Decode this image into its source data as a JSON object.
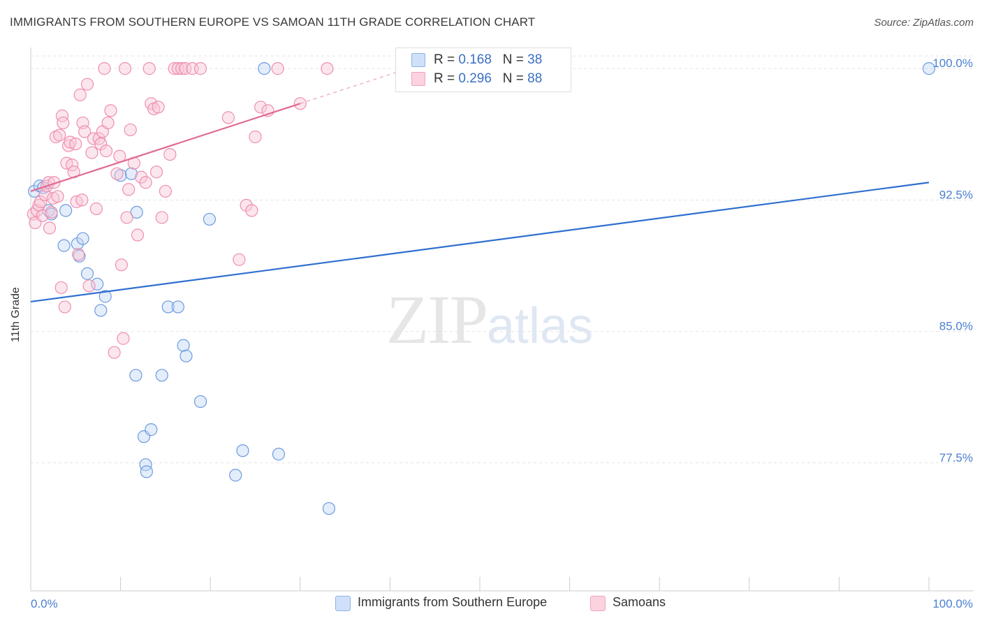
{
  "header": {
    "title": "IMMIGRANTS FROM SOUTHERN EUROPE VS SAMOAN 11TH GRADE CORRELATION CHART",
    "source": "Source: ZipAtlas.com"
  },
  "watermark": {
    "zip": "ZIP",
    "atlas": "atlas"
  },
  "legend": {
    "rows": [
      {
        "r_label": "R =",
        "r_value": "0.168",
        "n_label": "N =",
        "n_value": "38",
        "color": "#a9c6f0"
      },
      {
        "r_label": "R =",
        "r_value": "0.296",
        "n_label": "N =",
        "n_value": "88",
        "color": "#f6b7cb"
      }
    ]
  },
  "bottom_legend": {
    "items": [
      {
        "label": "Immigrants from Southern Europe",
        "color": "#a9c6f0"
      },
      {
        "label": "Samoans",
        "color": "#f6b7cb"
      }
    ]
  },
  "chart_data": {
    "type": "scatter",
    "title": "IMMIGRANTS FROM SOUTHERN EUROPE VS SAMOAN 11TH GRADE CORRELATION CHART",
    "xlabel": "",
    "ylabel": "11th Grade",
    "xlim": [
      0,
      100
    ],
    "ylim": [
      70.2,
      101.2
    ],
    "x_tick_labels": [
      "0.0%",
      "100.0%"
    ],
    "y_ticks": [
      77.5,
      85.0,
      92.5,
      100.0
    ],
    "y_tick_labels": [
      "77.5%",
      "85.0%",
      "92.5%",
      "100.0%"
    ],
    "grid": true,
    "legend_position": "top-center",
    "series": [
      {
        "name": "Immigrants from Southern Europe",
        "color": "#6b9be0",
        "trend": {
          "x0": 0,
          "y0": 86.7,
          "x1": 100,
          "y1": 93.5
        },
        "points": [
          [
            0.4,
            93.0
          ],
          [
            1.0,
            93.3
          ],
          [
            1.4,
            93.2
          ],
          [
            2.0,
            91.9
          ],
          [
            2.3,
            91.7
          ],
          [
            3.7,
            89.9
          ],
          [
            3.9,
            91.9
          ],
          [
            5.2,
            90.0
          ],
          [
            5.4,
            89.3
          ],
          [
            5.8,
            90.3
          ],
          [
            6.3,
            88.3
          ],
          [
            7.4,
            87.7
          ],
          [
            7.8,
            86.2
          ],
          [
            8.3,
            87.0
          ],
          [
            10.0,
            93.9
          ],
          [
            11.2,
            94.0
          ],
          [
            11.7,
            82.5
          ],
          [
            11.8,
            91.8
          ],
          [
            12.6,
            79.0
          ],
          [
            12.8,
            77.4
          ],
          [
            12.9,
            77.0
          ],
          [
            13.4,
            79.4
          ],
          [
            14.6,
            82.5
          ],
          [
            15.3,
            86.4
          ],
          [
            16.4,
            86.4
          ],
          [
            17.0,
            84.2
          ],
          [
            17.3,
            83.6
          ],
          [
            18.9,
            81.0
          ],
          [
            19.9,
            91.4
          ],
          [
            22.8,
            76.8
          ],
          [
            23.6,
            78.2
          ],
          [
            26.0,
            100.0
          ],
          [
            27.6,
            78.0
          ],
          [
            33.2,
            74.9
          ],
          [
            100.0,
            100.0
          ]
        ]
      },
      {
        "name": "Samoans",
        "color": "#ee8fb0",
        "trend": {
          "x0": 0,
          "y0": 93.0,
          "x1": 30,
          "y1": 98.0
        },
        "points": [
          [
            0.3,
            91.7
          ],
          [
            0.5,
            91.2
          ],
          [
            0.7,
            91.9
          ],
          [
            0.9,
            92.2
          ],
          [
            1.1,
            92.4
          ],
          [
            1.3,
            91.6
          ],
          [
            1.6,
            92.8
          ],
          [
            1.8,
            93.3
          ],
          [
            2.0,
            93.5
          ],
          [
            2.1,
            90.9
          ],
          [
            2.3,
            91.8
          ],
          [
            2.5,
            92.6
          ],
          [
            2.6,
            93.5
          ],
          [
            2.8,
            96.1
          ],
          [
            3.0,
            92.7
          ],
          [
            3.2,
            96.2
          ],
          [
            3.4,
            87.5
          ],
          [
            3.5,
            97.3
          ],
          [
            3.6,
            96.9
          ],
          [
            3.8,
            86.4
          ],
          [
            4.0,
            94.6
          ],
          [
            4.2,
            95.6
          ],
          [
            4.4,
            95.8
          ],
          [
            4.6,
            94.5
          ],
          [
            4.8,
            94.1
          ],
          [
            5.0,
            95.7
          ],
          [
            5.1,
            92.4
          ],
          [
            5.3,
            89.4
          ],
          [
            5.5,
            98.5
          ],
          [
            5.7,
            92.5
          ],
          [
            5.8,
            96.9
          ],
          [
            6.0,
            96.4
          ],
          [
            6.3,
            99.1
          ],
          [
            6.5,
            87.6
          ],
          [
            6.8,
            95.2
          ],
          [
            7.0,
            96.0
          ],
          [
            7.3,
            92.0
          ],
          [
            7.6,
            96.0
          ],
          [
            7.8,
            95.7
          ],
          [
            8.0,
            96.4
          ],
          [
            8.2,
            100.0
          ],
          [
            8.4,
            95.3
          ],
          [
            8.6,
            96.9
          ],
          [
            8.9,
            97.6
          ],
          [
            9.3,
            83.8
          ],
          [
            9.6,
            94.0
          ],
          [
            9.9,
            95.0
          ],
          [
            10.1,
            88.8
          ],
          [
            10.3,
            84.6
          ],
          [
            10.5,
            100.0
          ],
          [
            10.7,
            91.5
          ],
          [
            10.9,
            93.1
          ],
          [
            11.1,
            96.5
          ],
          [
            11.5,
            94.6
          ],
          [
            11.9,
            90.5
          ],
          [
            12.3,
            93.8
          ],
          [
            12.8,
            93.5
          ],
          [
            13.2,
            100.0
          ],
          [
            13.4,
            98.0
          ],
          [
            13.7,
            97.7
          ],
          [
            14.0,
            94.1
          ],
          [
            14.2,
            97.8
          ],
          [
            14.6,
            91.5
          ],
          [
            15.0,
            93.0
          ],
          [
            15.5,
            95.1
          ],
          [
            16.0,
            100.0
          ],
          [
            16.4,
            100.0
          ],
          [
            16.8,
            100.0
          ],
          [
            17.2,
            100.0
          ],
          [
            18.0,
            100.0
          ],
          [
            18.9,
            100.0
          ],
          [
            22.0,
            97.2
          ],
          [
            23.2,
            89.1
          ],
          [
            24.0,
            92.2
          ],
          [
            24.6,
            91.9
          ],
          [
            25.0,
            96.1
          ],
          [
            25.6,
            97.8
          ],
          [
            26.4,
            97.6
          ],
          [
            27.5,
            100.0
          ],
          [
            33.0,
            100.0
          ],
          [
            30.0,
            98.0
          ]
        ]
      }
    ]
  }
}
